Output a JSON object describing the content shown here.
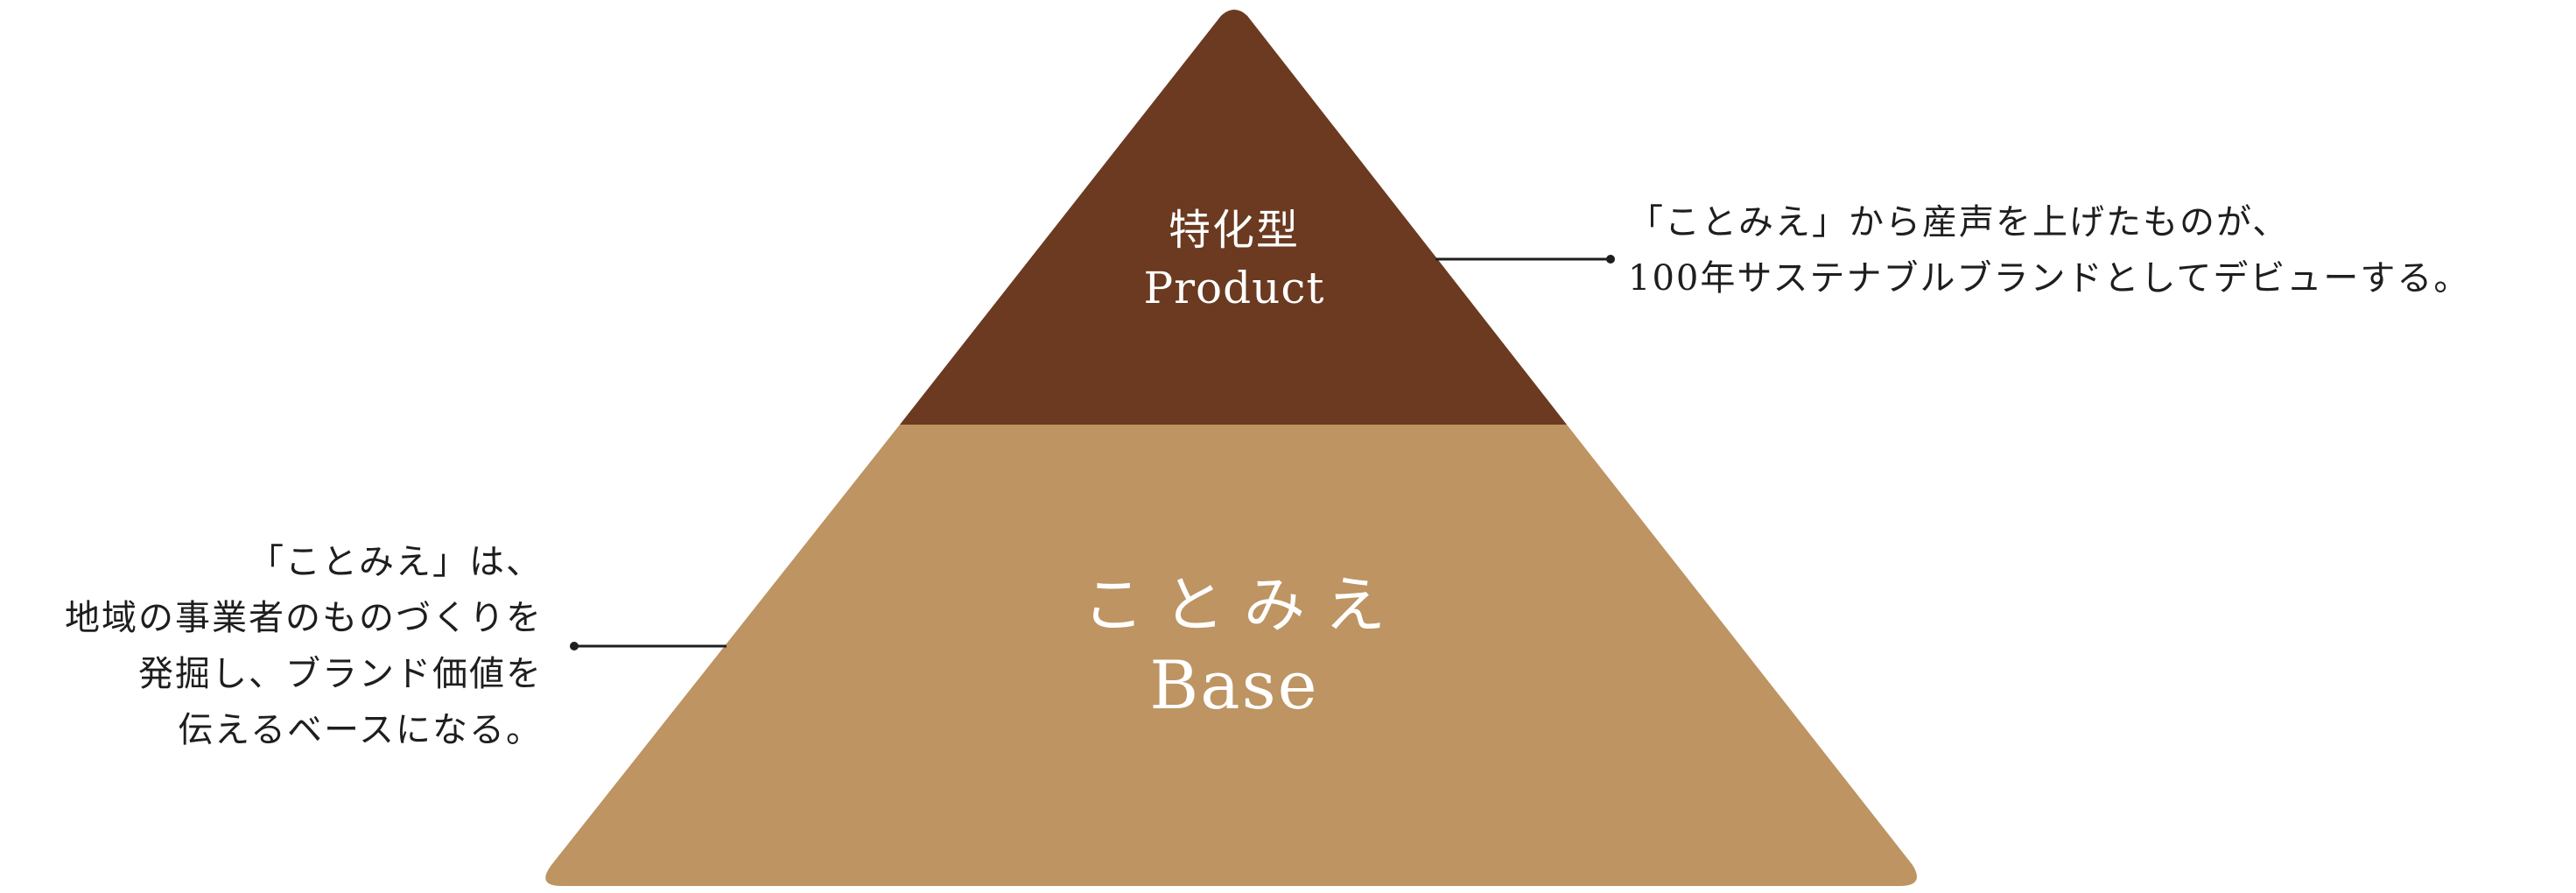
{
  "colors": {
    "top_tier": "#6b3a20",
    "base_tier": "#bd9462",
    "leader_line": "#1e1e1e",
    "tier_text": "#ffffff"
  },
  "pyramid": {
    "top_tier": {
      "title": "特化型",
      "subtitle": "Product"
    },
    "base_tier": {
      "title": "ことみえ",
      "subtitle": "Base"
    }
  },
  "annotations": {
    "top": {
      "lines": [
        "「ことみえ」から産声を上げたものが、",
        "100年サステナブルブランドとしてデビューする。"
      ]
    },
    "base": {
      "lines": [
        "「ことみえ」は、",
        "地域の事業者のものづくりを",
        "発掘し、ブランド価値を",
        "伝えるベースになる。"
      ]
    }
  }
}
